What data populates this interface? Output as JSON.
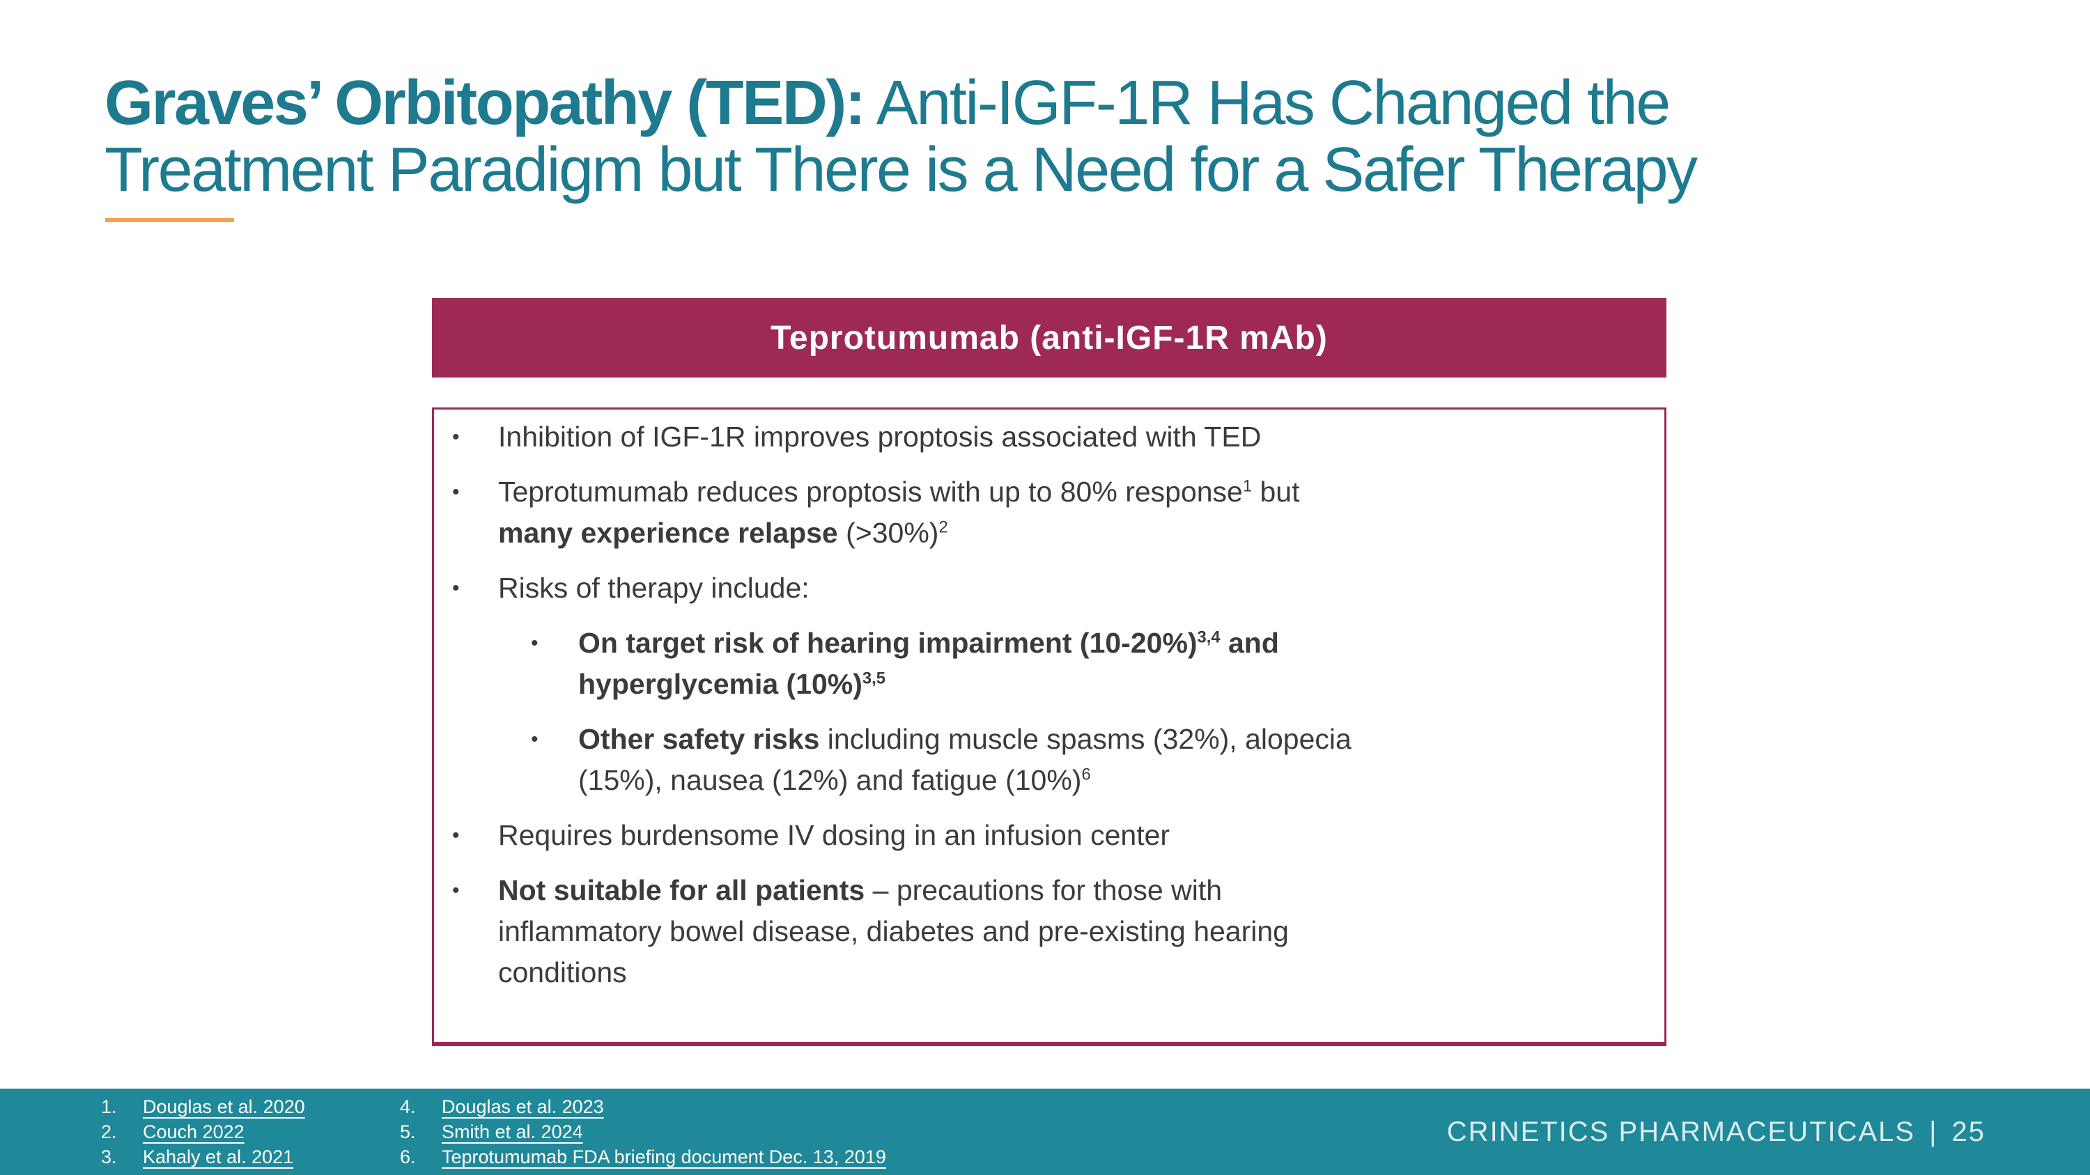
{
  "colors": {
    "title_teal": "#1E7A8E",
    "maroon": "#9E2957",
    "orange": "#F0A64E",
    "footer_teal": "#1F8899",
    "body_text": "#3B3B3B",
    "footer_text": "#FFFFFF",
    "brand_text": "#D9EDF0",
    "background": "#FFFFFF"
  },
  "title": {
    "line1_bold": "Graves’ Orbitopathy (TED):",
    "line1_rest": " Anti-IGF-1R Has Changed the",
    "line2": "Treatment Paradigm but There is a Need for a Safer Therapy"
  },
  "header_box": {
    "label": "Teprotumumab (anti-IGF-1R mAb)"
  },
  "bullet_marker": "•",
  "bullets": [
    {
      "level": 1,
      "lines": [
        [
          {
            "t": "Inhibition of IGF-1R improves proptosis associated with TED"
          }
        ]
      ]
    },
    {
      "level": 1,
      "lines": [
        [
          {
            "t": "Teprotumumab reduces proptosis with up to 80% response"
          },
          {
            "t": "1",
            "sup": true
          },
          {
            "t": " but"
          }
        ],
        [
          {
            "t": "many experience relapse",
            "b": true
          },
          {
            "t": " (>30%)"
          },
          {
            "t": "2",
            "sup": true
          }
        ]
      ]
    },
    {
      "level": 1,
      "lines": [
        [
          {
            "t": "Risks of therapy include:"
          }
        ]
      ]
    },
    {
      "level": 2,
      "lines": [
        [
          {
            "t": "On target risk of hearing impairment (10-20%)",
            "b": true
          },
          {
            "t": "3,4",
            "b": true,
            "sup": true
          },
          {
            "t": " and",
            "b": true
          }
        ],
        [
          {
            "t": "hyperglycemia (10%)",
            "b": true
          },
          {
            "t": "3,5",
            "b": true,
            "sup": true
          }
        ]
      ]
    },
    {
      "level": 2,
      "lines": [
        [
          {
            "t": "Other safety risks",
            "b": true
          },
          {
            "t": " including muscle spasms (32%), alopecia"
          }
        ],
        [
          {
            "t": "(15%), nausea (12%) and fatigue (10%)"
          },
          {
            "t": "6",
            "sup": true
          }
        ]
      ]
    },
    {
      "level": 1,
      "lines": [
        [
          {
            "t": "Requires burdensome IV dosing in an infusion center"
          }
        ]
      ]
    },
    {
      "level": 1,
      "lines": [
        [
          {
            "t": "Not suitable for all patients",
            "b": true
          },
          {
            "t": " – precautions for those with"
          }
        ],
        [
          {
            "t": "inflammatory bowel disease, diabetes and pre-existing hearing"
          }
        ],
        [
          {
            "t": "conditions"
          }
        ]
      ]
    }
  ],
  "footer": {
    "references": [
      {
        "num": "1.",
        "label": "Douglas et al. 2020"
      },
      {
        "num": "2.",
        "label": "Couch 2022"
      },
      {
        "num": "3.",
        "label": "Kahaly et al. 2021"
      },
      {
        "num": "4.",
        "label": "Douglas et al. 2023"
      },
      {
        "num": "5.",
        "label": "Smith et al. 2024"
      },
      {
        "num": "6.",
        "label": "Teprotumumab FDA briefing document Dec. 13, 2019"
      }
    ],
    "company": "CRINETICS PHARMACEUTICALS",
    "separator": "|",
    "page": "25"
  }
}
